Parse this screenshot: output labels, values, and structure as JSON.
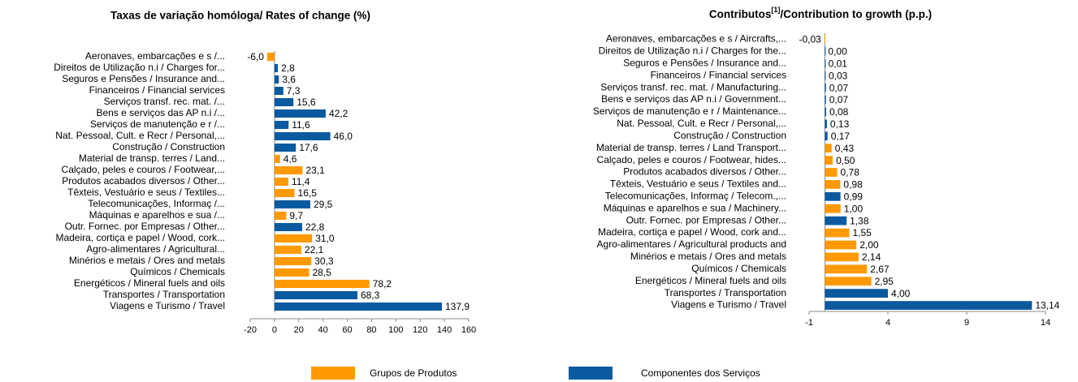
{
  "chart_data": [
    {
      "type": "bar",
      "orientation": "horizontal",
      "title": "Taxas de variação homóloga/ Rates of change (%)",
      "categories": [
        "Aeronaves, embarcações e s /...",
        "Direitos de Utilização n.i / Charges for...",
        "Seguros e Pensões / Insurance and...",
        "Financeiros / Financial services",
        "Serviços transf. rec. mat. /...",
        "Bens e serviços das AP n.i /...",
        "Serviços de manutenção e r /...",
        "Nat. Pessoal, Cult. e Recr / Personal,...",
        "Construção / Construction",
        "Material de transp. terres / Land...",
        "Calçado, peles e couros / Footwear,...",
        "Produtos acabados diversos / Other...",
        "Têxteis, Vestuário e seus  / Textiles...",
        "Telecomunicações, Informaç /...",
        "Máquinas e aparelhos e sua /...",
        "Outr. Fornec. por Empresas / Other...",
        "Madeira, cortiça e papel / Wood, cork...",
        "Agro-alimentares / Agricultural...",
        "Minérios e metais / Ores and metals",
        "Químicos / Chemicals",
        "Energéticos / Mineral fuels and oils",
        "Transportes / Transportation",
        "Viagens e Turismo / Travel"
      ],
      "series": [
        {
          "name": "Grupos de Produtos",
          "color": "#ff9900",
          "values": [
            -6.0,
            null,
            null,
            null,
            null,
            null,
            null,
            null,
            null,
            4.6,
            23.1,
            11.4,
            16.5,
            null,
            9.7,
            null,
            31.0,
            22.1,
            30.3,
            28.5,
            78.2,
            null,
            null
          ],
          "value_labels": [
            "-6,0",
            null,
            null,
            null,
            null,
            null,
            null,
            null,
            null,
            "4,6",
            "23,1",
            "11,4",
            "16,5",
            null,
            "9,7",
            null,
            "31,0",
            "22,1",
            "30,3",
            "28,5",
            "78,2",
            null,
            null
          ]
        },
        {
          "name": "Componentes dos Serviços",
          "color": "#0b5aa0",
          "values": [
            null,
            2.8,
            3.6,
            7.3,
            15.6,
            42.2,
            11.6,
            46.0,
            17.6,
            null,
            null,
            null,
            null,
            29.5,
            null,
            22.8,
            null,
            null,
            null,
            null,
            null,
            68.3,
            137.9
          ],
          "value_labels": [
            null,
            "2,8",
            "3,6",
            "7,3",
            "15,6",
            "42,2",
            "11,6",
            "46,0",
            "17,6",
            null,
            null,
            null,
            null,
            "29,5",
            null,
            "22,8",
            null,
            null,
            null,
            null,
            null,
            "68,3",
            "137,9"
          ]
        }
      ],
      "xlim": [
        -20,
        160
      ],
      "xticks": [
        -20,
        0,
        20,
        40,
        60,
        80,
        100,
        120,
        140,
        160
      ]
    },
    {
      "type": "bar",
      "orientation": "horizontal",
      "title": "Contributos",
      "title_superscript": "[1]",
      "title_rest": "/Contribution to growth (p.p.)",
      "categories": [
        "Aeronaves, embarcações e s / Aircrafts,...",
        "Direitos de Utilização n.i / Charges for the...",
        "Seguros e Pensões / Insurance and...",
        "Financeiros / Financial services",
        "Serviços transf. rec. mat. / Manufacturing...",
        "Bens e serviços das AP n.i / Government...",
        "Serviços de manutenção e r / Maintenance...",
        "Nat. Pessoal, Cult. e Recr / Personal,...",
        "Construção / Construction",
        "Material de transp. terres / Land Transport...",
        "Calçado, peles e couros / Footwear, hides...",
        "Produtos acabados diversos / Other...",
        "Têxteis, Vestuário e seus  / Textiles and...",
        "Telecomunicações, Informaç / Telecom.,...",
        "Máquinas e aparelhos e sua / Machinery...",
        "Outr. Fornec. por Empresas / Other...",
        "Madeira, cortiça e papel / Wood, cork and...",
        "Agro-alimentares / Agricultural products and",
        "Minérios e metais / Ores and metals",
        "Químicos / Chemicals",
        "Energéticos / Mineral fuels and oils",
        "Transportes / Transportation",
        "Viagens e Turismo / Travel"
      ],
      "series": [
        {
          "color": "#ff9900",
          "values": [
            -0.03,
            null,
            null,
            null,
            null,
            null,
            null,
            null,
            null,
            0.43,
            0.5,
            0.78,
            0.98,
            null,
            1.0,
            null,
            1.55,
            2.0,
            2.14,
            2.67,
            2.95,
            null,
            null
          ],
          "value_labels": [
            "-0,03",
            null,
            null,
            null,
            null,
            null,
            null,
            null,
            null,
            "0,43",
            "0,50",
            "0,78",
            "0,98",
            null,
            "1,00",
            null,
            "1,55",
            "2,00",
            "2,14",
            "2,67",
            "2,95",
            null,
            null
          ]
        },
        {
          "color": "#0b5aa0",
          "values": [
            null,
            0.0,
            0.01,
            0.03,
            0.07,
            0.07,
            0.08,
            0.13,
            0.17,
            null,
            null,
            null,
            null,
            0.99,
            null,
            1.38,
            null,
            null,
            null,
            null,
            null,
            4.0,
            13.14
          ],
          "value_labels": [
            null,
            "0,00",
            "0,01",
            "0,03",
            "0,07",
            "0,07",
            "0,08",
            "0,13",
            "0,17",
            null,
            null,
            null,
            null,
            "0,99",
            null,
            "1,38",
            null,
            null,
            null,
            null,
            null,
            "4,00",
            "13,14"
          ]
        }
      ],
      "xlim": [
        -1,
        14
      ],
      "xticks": [
        -1,
        4,
        9,
        14
      ]
    }
  ]
}
